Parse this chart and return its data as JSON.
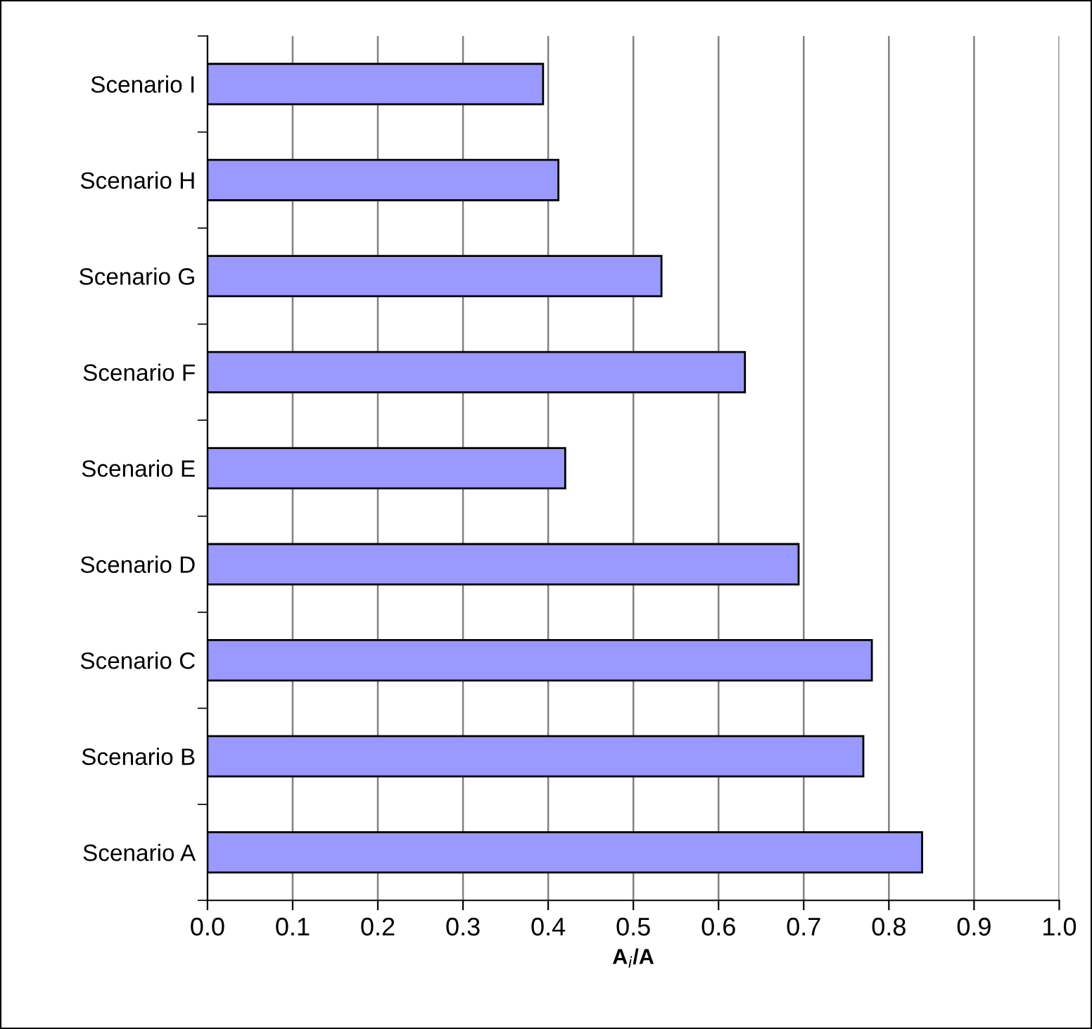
{
  "chart_data": {
    "type": "bar",
    "orientation": "horizontal",
    "xlabel": "A$_{i}$/A",
    "categories": [
      "Scenario I",
      "Scenario H",
      "Scenario G",
      "Scenario F",
      "Scenario E",
      "Scenario D",
      "Scenario C",
      "Scenario B",
      "Scenario A"
    ],
    "values": [
      0.394,
      0.412,
      0.533,
      0.631,
      0.42,
      0.694,
      0.78,
      0.77,
      0.839
    ],
    "color": "#9999ff",
    "xlim": [
      0,
      1
    ],
    "xticks": [
      {
        "value": 0,
        "label": "0.0"
      },
      {
        "value": 0.1,
        "label": "0.1"
      },
      {
        "value": 0.2,
        "label": "0.2"
      },
      {
        "value": 0.3,
        "label": "0.3"
      },
      {
        "value": 0.4,
        "label": "0.4"
      },
      {
        "value": 0.5,
        "label": "0.5"
      },
      {
        "value": 0.6,
        "label": "0.6"
      },
      {
        "value": 0.7,
        "label": "0.7"
      },
      {
        "value": 0.8,
        "label": "0.8"
      },
      {
        "value": 0.9,
        "label": "0.9"
      },
      {
        "value": 1,
        "label": "1.0"
      }
    ],
    "grid": "x",
    "legend": false
  }
}
